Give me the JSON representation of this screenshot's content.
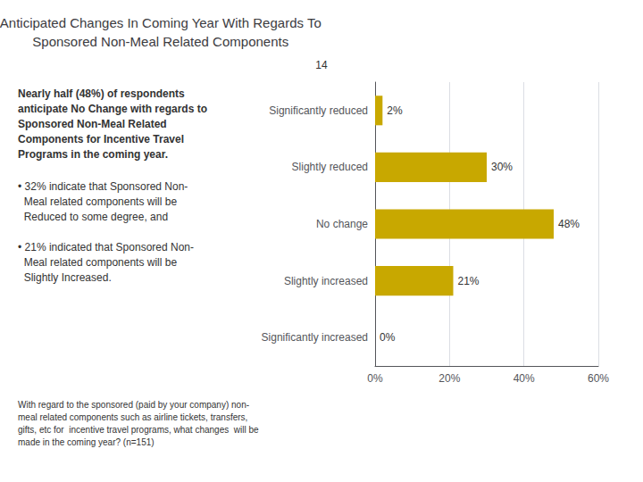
{
  "chart_data": {
    "type": "bar",
    "title": "Anticipated Changes In Coming Year With Regards To\nSponsored Non-Meal Related Components",
    "categories": [
      "Significantly reduced",
      "Slightly reduced",
      "No change",
      "Slightly increased",
      "Significantly increased"
    ],
    "values": [
      2,
      30,
      48,
      21,
      0
    ],
    "value_labels": [
      "2%",
      "30%",
      "48%",
      "21%",
      "0%"
    ],
    "color": "#C8A800",
    "orientation": "horizontal",
    "data_labels": true,
    "grid": true,
    "xlim": [
      0,
      60
    ],
    "xticks": [
      {
        "value": 0,
        "label": "0%"
      },
      {
        "value": 20,
        "label": "20%"
      },
      {
        "value": 40,
        "label": "40%"
      },
      {
        "value": 60,
        "label": "60%"
      }
    ],
    "annotations": [
      "14",
      "Nearly half (48%) of respondents\nanticipate No Change with regards to\nSponsored Non-Meal Related\nComponents for Incentive Travel\nPrograms in the coming year.",
      "• 32% indicate that Sponsored Non-\n  Meal related components will be\n  Reduced to some degree, and",
      "• 21% indicated that Sponsored Non-\n  Meal related components will be\n  Slightly Increased.",
      "With regard to the sponsored (paid by your company) non-\nmeal related components such as airline tickets, transfers,\ngifts, etc for  incentive travel programs, what changes  will be\nmade in the coming year? (n=151)"
    ]
  }
}
